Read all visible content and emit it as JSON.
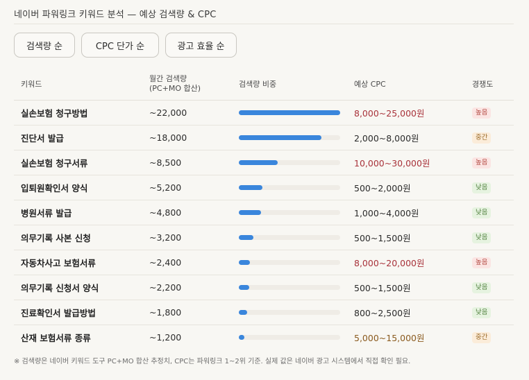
{
  "title": "네이버 파워링크 키워드 분석 — 예상 검색량 & CPC",
  "sort_buttons": [
    "검색량 순",
    "CPC 단가 순",
    "광고 효율 순"
  ],
  "headers": {
    "keyword": "키워드",
    "volume_line1": "월간 검색량",
    "volume_line2": "(PC+MO 합산)",
    "share": "검색량 비중",
    "cpc": "예상 CPC",
    "competition": "경쟁도"
  },
  "rows": [
    {
      "keyword": "실손보험 청구방법",
      "volume": "~22,000",
      "share": 1.0,
      "cpc": "8,000~25,000원",
      "cpc_level": "high",
      "competition": "높음",
      "comp_level": "high"
    },
    {
      "keyword": "진단서 발급",
      "volume": "~18,000",
      "share": 0.818,
      "cpc": "2,000~8,000원",
      "cpc_level": "normal",
      "competition": "중간",
      "comp_level": "mid"
    },
    {
      "keyword": "실손보험 청구서류",
      "volume": "~8,500",
      "share": 0.386,
      "cpc": "10,000~30,000원",
      "cpc_level": "high",
      "competition": "높음",
      "comp_level": "high"
    },
    {
      "keyword": "입퇴원확인서 양식",
      "volume": "~5,200",
      "share": 0.236,
      "cpc": "500~2,000원",
      "cpc_level": "normal",
      "competition": "낮음",
      "comp_level": "low"
    },
    {
      "keyword": "병원서류 발급",
      "volume": "~4,800",
      "share": 0.218,
      "cpc": "1,000~4,000원",
      "cpc_level": "normal",
      "competition": "낮음",
      "comp_level": "low"
    },
    {
      "keyword": "의무기록 사본 신청",
      "volume": "~3,200",
      "share": 0.145,
      "cpc": "500~1,500원",
      "cpc_level": "normal",
      "competition": "낮음",
      "comp_level": "low"
    },
    {
      "keyword": "자동차사고 보험서류",
      "volume": "~2,400",
      "share": 0.109,
      "cpc": "8,000~20,000원",
      "cpc_level": "high",
      "competition": "높음",
      "comp_level": "high"
    },
    {
      "keyword": "의무기록 신청서 양식",
      "volume": "~2,200",
      "share": 0.1,
      "cpc": "500~1,500원",
      "cpc_level": "normal",
      "competition": "낮음",
      "comp_level": "low"
    },
    {
      "keyword": "진료확인서 발급방법",
      "volume": "~1,800",
      "share": 0.082,
      "cpc": "800~2,500원",
      "cpc_level": "normal",
      "competition": "낮음",
      "comp_level": "low"
    },
    {
      "keyword": "산재 보험서류 종류",
      "volume": "~1,200",
      "share": 0.055,
      "cpc": "5,000~15,000원",
      "cpc_level": "mid",
      "competition": "중간",
      "comp_level": "mid"
    }
  ],
  "footnote": "※ 검색량은 네이버 키워드 도구 PC+MO 합산 추정치, CPC는 파워링크 1~2위 기준. 실제 값은 네이버 광고 시스템에서 직접 확인 필요.",
  "colors": {
    "bar": "#3a86dc",
    "high": "#a8323a",
    "mid": "#8a5a1e"
  }
}
